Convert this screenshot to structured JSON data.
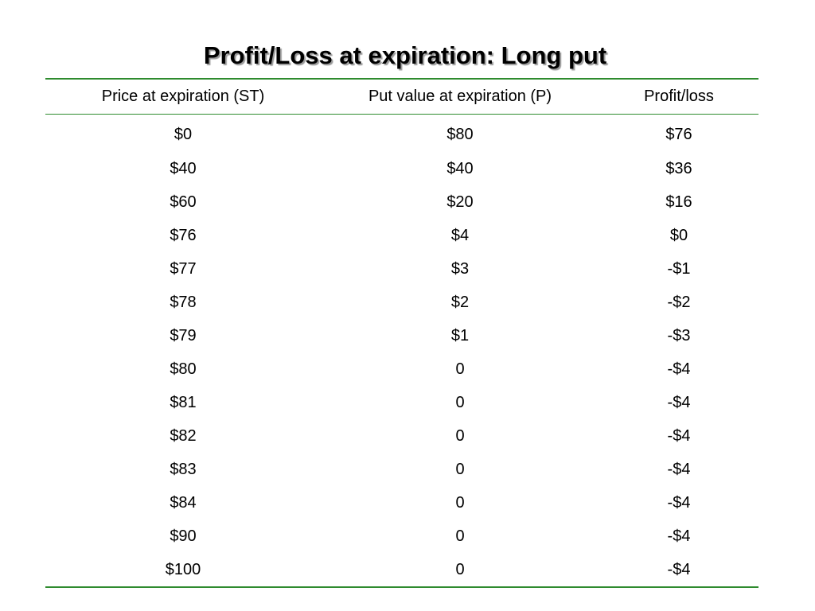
{
  "title": "Profit/Loss at expiration: Long put",
  "table": {
    "headers": [
      "Price at expiration (ST)",
      "Put value at expiration (P)",
      "Profit/loss"
    ],
    "rows": [
      [
        "$0",
        "$80",
        "$76"
      ],
      [
        "$40",
        "$40",
        "$36"
      ],
      [
        "$60",
        "$20",
        "$16"
      ],
      [
        "$76",
        "$4",
        "$0"
      ],
      [
        "$77",
        "$3",
        "-$1"
      ],
      [
        "$78",
        "$2",
        "-$2"
      ],
      [
        "$79",
        "$1",
        "-$3"
      ],
      [
        "$80",
        "0",
        "-$4"
      ],
      [
        "$81",
        "0",
        "-$4"
      ],
      [
        "$82",
        "0",
        "-$4"
      ],
      [
        "$83",
        "0",
        "-$4"
      ],
      [
        "$84",
        "0",
        "-$4"
      ],
      [
        "$90",
        "0",
        "-$4"
      ],
      [
        "$100",
        "0",
        "-$4"
      ]
    ]
  },
  "colors": {
    "rule": "#2e8b2e",
    "title_shadow": "#9a9a9a"
  }
}
